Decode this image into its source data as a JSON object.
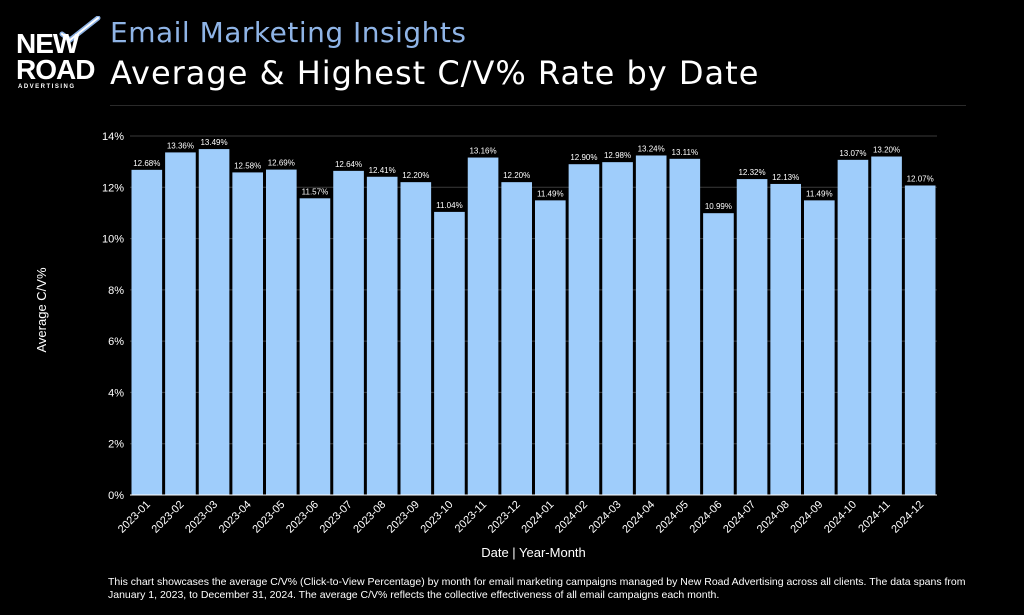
{
  "logo": {
    "line1": "NEW",
    "line2": "ROAD",
    "line3": "ADVERTISING"
  },
  "header": {
    "subtitle": "Email Marketing Insights",
    "title": "Average & Highest C/V% Rate by Date"
  },
  "footnote": "This chart showcases the average C/V% (Click-to-View Percentage) by month for email marketing campaigns managed by New Road Advertising across all clients. The data spans from January 1, 2023, to December 31, 2024. The average C/V% reflects the collective effectiveness of all email campaigns each month.",
  "colors": {
    "bar": "#9fcdfb",
    "background": "#000000",
    "subtitle": "#8fb4e6"
  },
  "chart_data": {
    "type": "bar",
    "categories": [
      "2023-01",
      "2023-02",
      "2023-03",
      "2023-04",
      "2023-05",
      "2023-06",
      "2023-07",
      "2023-08",
      "2023-09",
      "2023-10",
      "2023-11",
      "2023-12",
      "2024-01",
      "2024-02",
      "2024-03",
      "2024-04",
      "2024-05",
      "2024-06",
      "2024-07",
      "2024-08",
      "2024-09",
      "2024-10",
      "2024-11",
      "2024-12"
    ],
    "values": [
      12.68,
      13.36,
      13.49,
      12.58,
      12.69,
      11.57,
      12.64,
      12.41,
      12.2,
      11.04,
      13.16,
      12.2,
      11.49,
      12.9,
      12.98,
      13.24,
      13.11,
      10.99,
      12.32,
      12.13,
      11.49,
      13.07,
      13.2,
      12.07
    ],
    "data_labels": [
      "12.68%",
      "13.36%",
      "13.49%",
      "12.58%",
      "12.69%",
      "11.57%",
      "12.64%",
      "12.41%",
      "12.20%",
      "11.04%",
      "13.16%",
      "12.20%",
      "11.49%",
      "12.90%",
      "12.98%",
      "13.24%",
      "13.11%",
      "10.99%",
      "12.32%",
      "12.13%",
      "11.49%",
      "13.07%",
      "13.20%",
      "12.07%"
    ],
    "xlabel": "Date | Year-Month",
    "ylabel": "Average C/V%",
    "ylim": [
      0,
      14
    ],
    "yticks": [
      0,
      2,
      4,
      6,
      8,
      10,
      12,
      14
    ],
    "ytick_labels": [
      "0%",
      "2%",
      "4%",
      "6%",
      "8%",
      "10%",
      "12%",
      "14%"
    ],
    "grid": true,
    "legend": "none"
  }
}
